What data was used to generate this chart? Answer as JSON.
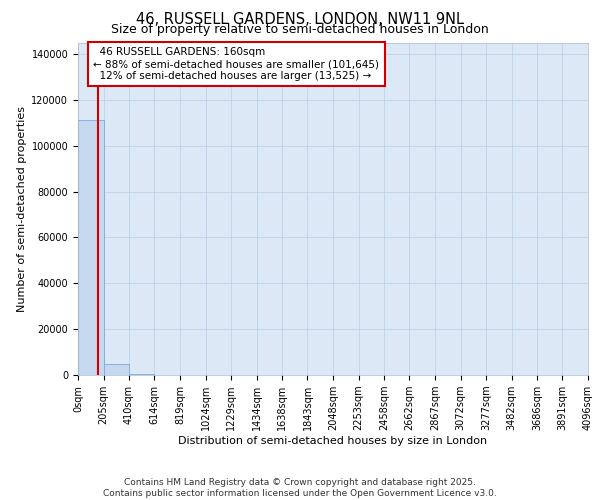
{
  "title": "46, RUSSELL GARDENS, LONDON, NW11 9NL",
  "subtitle": "Size of property relative to semi-detached houses in London",
  "xlabel": "Distribution of semi-detached houses by size in London",
  "ylabel": "Number of semi-detached properties",
  "property_size": 160,
  "property_label": "46 RUSSELL GARDENS: 160sqm",
  "pct_smaller": 88,
  "n_smaller": 101645,
  "pct_larger": 12,
  "n_larger": 13525,
  "annotation_box_color": "#cc0000",
  "bar_color": "#c5d8f0",
  "bar_edge_color": "#7aaad4",
  "vline_color": "#cc0000",
  "plot_bg_color": "#dce8f5",
  "fig_bg_color": "#ffffff",
  "grid_color": "#b8cfe8",
  "bin_edges": [
    0,
    205,
    410,
    614,
    819,
    1024,
    1229,
    1434,
    1638,
    1843,
    2048,
    2253,
    2458,
    2662,
    2867,
    3072,
    3277,
    3482,
    3686,
    3891,
    4096
  ],
  "bin_counts": [
    111000,
    5000,
    400,
    150,
    80,
    40,
    20,
    15,
    10,
    8,
    6,
    5,
    4,
    3,
    3,
    2,
    2,
    2,
    1,
    1
  ],
  "ylim": [
    0,
    145000
  ],
  "yticks": [
    0,
    20000,
    40000,
    60000,
    80000,
    100000,
    120000,
    140000
  ],
  "xtick_labels": [
    "0sqm",
    "205sqm",
    "410sqm",
    "614sqm",
    "819sqm",
    "1024sqm",
    "1229sqm",
    "1434sqm",
    "1638sqm",
    "1843sqm",
    "2048sqm",
    "2253sqm",
    "2458sqm",
    "2662sqm",
    "2867sqm",
    "3072sqm",
    "3277sqm",
    "3482sqm",
    "3686sqm",
    "3891sqm",
    "4096sqm"
  ],
  "footer_line1": "Contains HM Land Registry data © Crown copyright and database right 2025.",
  "footer_line2": "Contains public sector information licensed under the Open Government Licence v3.0.",
  "title_fontsize": 10.5,
  "subtitle_fontsize": 9,
  "axis_label_fontsize": 8,
  "tick_fontsize": 7,
  "annot_fontsize": 7.5,
  "footer_fontsize": 6.5
}
